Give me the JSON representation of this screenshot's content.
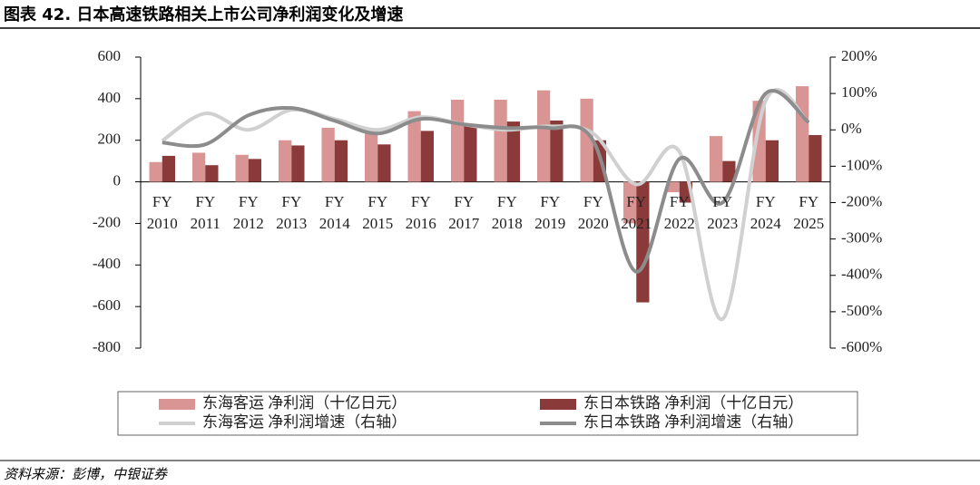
{
  "chart_data": {
    "type": "bar-line",
    "title": "图表 42. 日本高速铁路相关上市公司净利润变化及增速",
    "source": "资料来源：彭博，中银证券",
    "categories": [
      "FY 2010",
      "FY 2011",
      "FY 2012",
      "FY 2013",
      "FY 2014",
      "FY 2015",
      "FY 2016",
      "FY 2017",
      "FY 2018",
      "FY 2019",
      "FY 2020",
      "FY 2021",
      "FY 2022",
      "FY 2023",
      "FY 2024",
      "FY 2025"
    ],
    "series": [
      {
        "name": "东海客运 净利润（十亿日元）",
        "type": "bar",
        "color": "#d99594",
        "values": [
          95,
          140,
          130,
          200,
          260,
          240,
          340,
          395,
          395,
          440,
          400,
          -200,
          -50,
          220,
          390,
          460
        ]
      },
      {
        "name": "东日本铁路 净利润（十亿日元）",
        "type": "bar",
        "color": "#8b3a3a",
        "values": [
          125,
          80,
          110,
          175,
          200,
          180,
          245,
          275,
          290,
          295,
          200,
          -580,
          -100,
          100,
          200,
          225
        ]
      },
      {
        "name": "东海客运 净利润增速（右轴）",
        "type": "line",
        "axis": "y2",
        "color": "#d0d0d0",
        "values": [
          -30,
          45,
          0,
          55,
          30,
          0,
          35,
          15,
          0,
          10,
          -10,
          -150,
          -60,
          -520,
          80,
          20
        ]
      },
      {
        "name": "东日本铁路 净利润增速（右轴）",
        "type": "line",
        "axis": "y2",
        "color": "#8c8c8c",
        "values": [
          -35,
          -40,
          40,
          60,
          25,
          -10,
          30,
          15,
          5,
          5,
          -30,
          -390,
          -80,
          -200,
          100,
          20
        ]
      }
    ],
    "ylim": [
      -800,
      600
    ],
    "yticks": [
      -800,
      -600,
      -400,
      -200,
      0,
      200,
      400,
      600
    ],
    "y2lim": [
      -600,
      200
    ],
    "y2ticks": [
      {
        "value": -600,
        "label": "-600%"
      },
      {
        "value": -500,
        "label": "-500%"
      },
      {
        "value": -400,
        "label": "-400%"
      },
      {
        "value": -300,
        "label": "-300%"
      },
      {
        "value": -200,
        "label": "-200%"
      },
      {
        "value": -100,
        "label": "-100%"
      },
      {
        "value": 0,
        "label": "0%"
      },
      {
        "value": 100,
        "label": "100%"
      },
      {
        "value": 200,
        "label": "200%"
      }
    ]
  }
}
